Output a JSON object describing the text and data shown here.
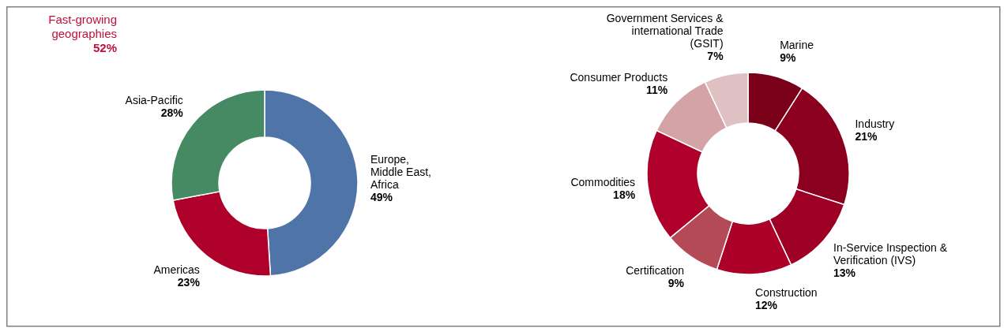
{
  "chart_data": [
    {
      "type": "donut",
      "categories": [
        "Europe, Middle East, Africa",
        "Americas",
        "Asia-Pacific"
      ],
      "values": [
        49,
        23,
        28
      ],
      "value_labels": [
        "49%",
        "23%",
        "28%"
      ],
      "colors": [
        "#4f74a8",
        "#ae002a",
        "#468a64"
      ],
      "annotations": [
        "Fast-growing geographies 52%"
      ]
    },
    {
      "type": "donut",
      "categories": [
        "Marine",
        "Industry",
        "In-Service Inspection & Verification (IVS)",
        "Construction",
        "Certification",
        "Commodities",
        "Consumer Products",
        "Government Services & international Trade (GSIT)"
      ],
      "values": [
        9,
        21,
        13,
        12,
        9,
        18,
        11,
        7
      ],
      "value_labels": [
        "9%",
        "21%",
        "13%",
        "12%",
        "9%",
        "18%",
        "11%",
        "7%"
      ],
      "colors": [
        "#7a0019",
        "#8c001f",
        "#9d0024",
        "#ad0029",
        "#b44a55",
        "#ae002a",
        "#d3a3a6",
        "#dfc1c3"
      ]
    }
  ]
}
